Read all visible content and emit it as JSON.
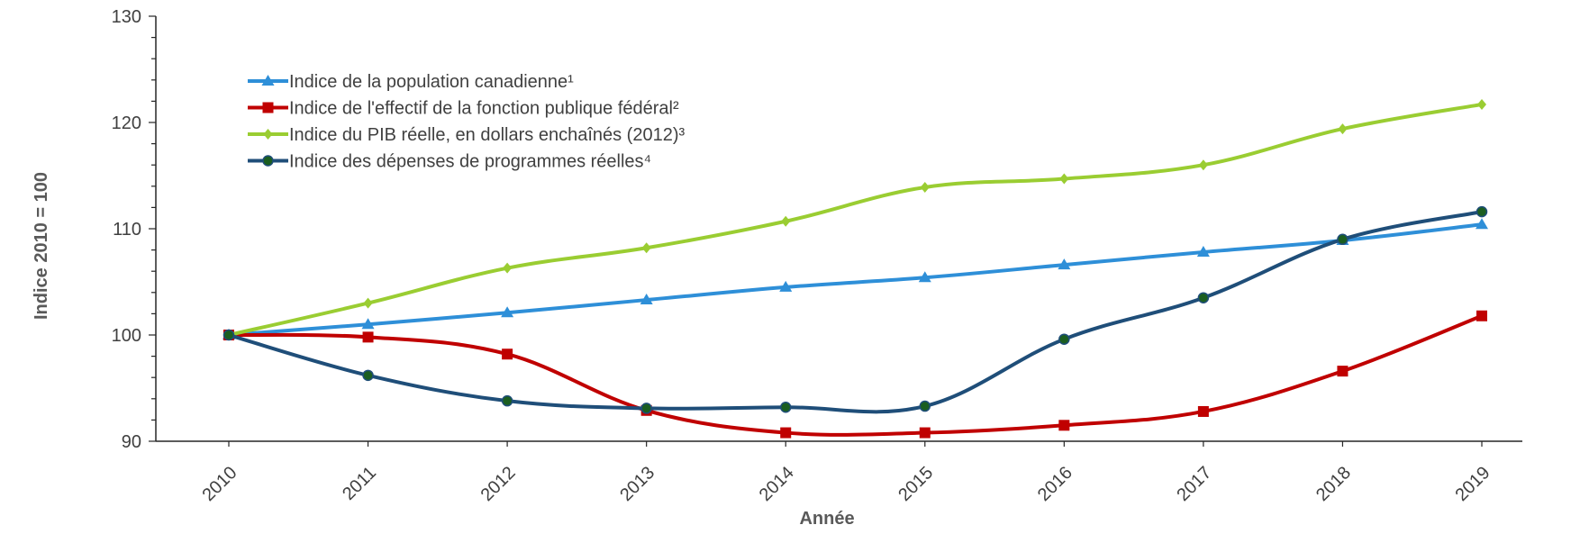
{
  "chart_data": {
    "type": "line",
    "title": "",
    "xlabel": "Année",
    "ylabel": "Indice 2010 = 100",
    "x": [
      "2010",
      "2011",
      "2012",
      "2013",
      "2014",
      "2015",
      "2016",
      "2017",
      "2018",
      "2019"
    ],
    "ylim": [
      90,
      130
    ],
    "yticks": [
      90,
      100,
      110,
      120,
      130
    ],
    "grid": false,
    "legend_position": "top-left",
    "series": [
      {
        "name": "Indice de la population canadienne¹",
        "color": "#2E8FD8",
        "marker": "triangle",
        "values": [
          100,
          101.0,
          102.1,
          103.3,
          104.5,
          105.4,
          106.6,
          107.8,
          108.9,
          110.4
        ]
      },
      {
        "name": "Indice de l'effectif de la fonction publique fédéral²",
        "color": "#C00000",
        "marker": "square",
        "values": [
          100,
          99.8,
          98.2,
          92.9,
          90.8,
          90.8,
          91.5,
          92.8,
          96.6,
          101.8
        ]
      },
      {
        "name": "Indice du PIB réelle, en dollars enchaînés (2012)³",
        "color": "#9ACD32",
        "marker": "diamond",
        "values": [
          100,
          103.0,
          106.3,
          108.2,
          110.7,
          113.9,
          114.7,
          116.0,
          119.4,
          121.7
        ]
      },
      {
        "name": "Indice des dépenses de programmes réelles⁴",
        "color": "#1F4E79",
        "marker": "circle",
        "values": [
          100,
          96.2,
          93.8,
          93.1,
          93.2,
          93.3,
          99.6,
          103.5,
          109.0,
          111.6
        ]
      }
    ]
  }
}
